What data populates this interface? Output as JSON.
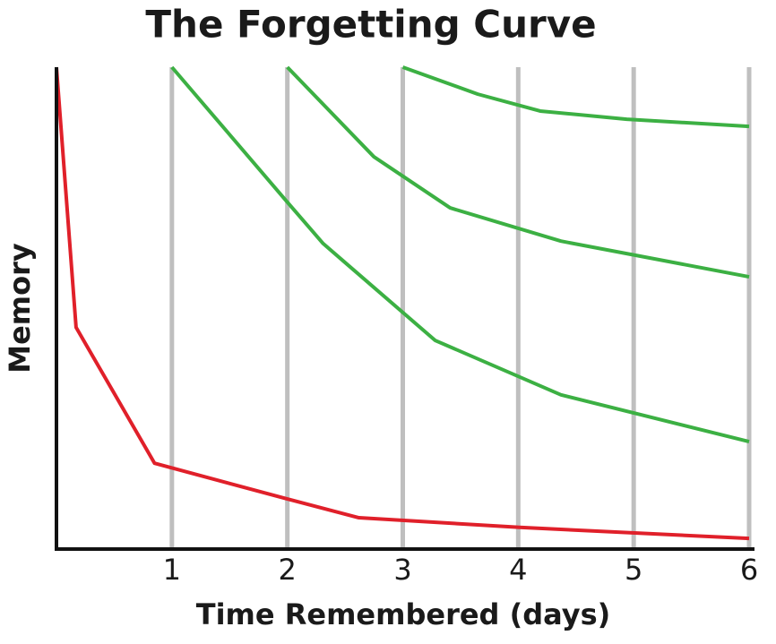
{
  "chart_data": {
    "type": "line",
    "title": "The Forgetting Curve",
    "x_label": "Time Remembered (days)",
    "y_label": "Memory",
    "xlim": [
      0,
      6
    ],
    "xticks": [
      1,
      2,
      3,
      4,
      5,
      6
    ],
    "ylim": [
      0,
      100
    ],
    "grid": true,
    "grid_color": "#bfbfbf",
    "series": [
      {
        "color": "#e0202a",
        "x": [
          0,
          0.17,
          0.85,
          2.0,
          2.62,
          4.01,
          6
        ],
        "values": [
          100,
          46,
          17.8,
          10.4,
          6.5,
          4.5,
          2.2
        ]
      },
      {
        "color": "#3cb043",
        "x": [
          1,
          2,
          2.31,
          3.28,
          4.37,
          6
        ],
        "values": [
          100,
          72,
          63.4,
          43.3,
          32,
          22.3
        ]
      },
      {
        "color": "#3cb043",
        "x": [
          2,
          2.75,
          3.41,
          4.37,
          6
        ],
        "values": [
          100,
          81.4,
          70.8,
          63.9,
          56.5
        ]
      },
      {
        "color": "#3cb043",
        "x": [
          3,
          3.65,
          4.19,
          4.94,
          6
        ],
        "values": [
          100,
          94.4,
          90.9,
          89.2,
          87.7
        ]
      }
    ]
  }
}
